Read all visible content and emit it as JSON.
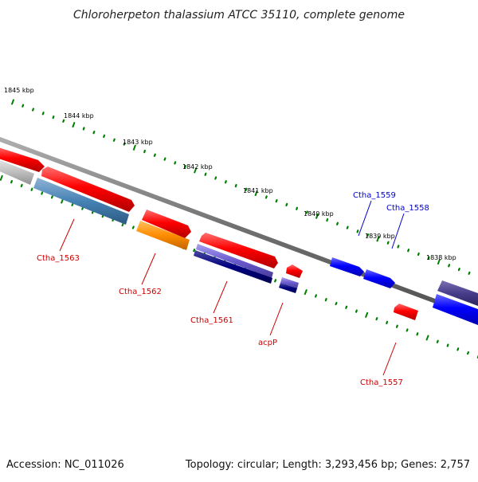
{
  "title": "Chloroherpeton thalassium ATCC 35110, complete genome",
  "footer": {
    "accession": "Accession: NC_011026",
    "summary": "Topology: circular; Length: 3,293,456 bp; Genes: 2,757"
  },
  "ticks": [
    "1845 kbp",
    "1844 kbp",
    "1843 kbp",
    "1842 kbp",
    "1841 kbp",
    "1840 kbp",
    "1839 kbp",
    "1838 kbp"
  ],
  "labels": [
    {
      "name": "Ctha_1563",
      "color": "#cc0000"
    },
    {
      "name": "Ctha_1562",
      "color": "#cc0000"
    },
    {
      "name": "Ctha_1561",
      "color": "#cc0000"
    },
    {
      "name": "acpP",
      "color": "#cc0000"
    },
    {
      "name": "Ctha_1557",
      "color": "#cc0000"
    },
    {
      "name": "Ctha_1559",
      "color": "#0000cc"
    },
    {
      "name": "Ctha_1558",
      "color": "#0000cc"
    }
  ],
  "colors": {
    "forward_gene": "#0000ee",
    "reverse_gene": "#ee0000",
    "backbone": "#777777",
    "ticks": "#008000"
  }
}
